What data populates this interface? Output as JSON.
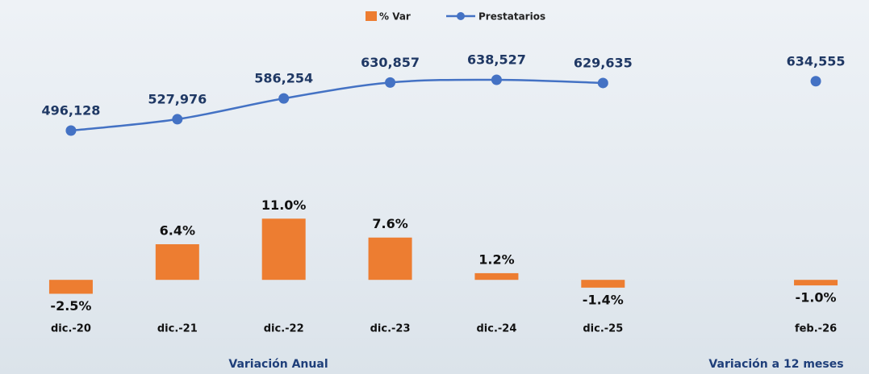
{
  "chart_data": {
    "type": "bar-line",
    "categories": [
      "dic.-20",
      "dic.-21",
      "dic.-22",
      "dic.-23",
      "dic.-24",
      "dic.-25",
      null,
      "feb.-26"
    ],
    "series": [
      {
        "name": "% Var",
        "type": "bar",
        "color": "#ed7d31",
        "values": [
          -2.5,
          6.4,
          11.0,
          7.6,
          1.2,
          -1.4,
          null,
          -1.0
        ],
        "value_labels": [
          "-2.5%",
          "6.4%",
          "11.0%",
          "7.6%",
          "1.2%",
          "-1.4%",
          null,
          "-1.0%"
        ]
      },
      {
        "name": "Prestatarios",
        "type": "line",
        "axis": "y2",
        "color": "#4472c4",
        "values": [
          496128,
          527976,
          586254,
          630857,
          638527,
          629635,
          null,
          634555
        ],
        "value_labels": [
          "496,128",
          "527,976",
          "586,254",
          "630,857",
          "638,527",
          "629,635",
          null,
          "634,555"
        ]
      }
    ],
    "ylim": [
      -6.2,
      44.5
    ],
    "y2lim": [
      -19200,
      771900
    ],
    "annotations": [
      "Variación  Anual",
      "Variación  a 12 meses"
    ],
    "legend": "top"
  }
}
